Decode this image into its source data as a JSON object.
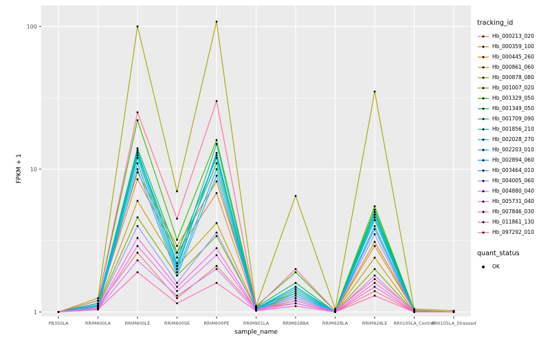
{
  "chart_data": {
    "type": "line",
    "title": "",
    "xlabel": "sample_name",
    "ylabel": "FPKM + 1",
    "y_scale": "log10",
    "y_ticks": [
      1,
      10,
      100
    ],
    "y_minor_ticks": [
      3.1623,
      31.623
    ],
    "ylim": [
      0.93,
      140
    ],
    "grid": true,
    "panel_background": "#EBEBEB",
    "gridline_color": "#FFFFFF",
    "point_color": "#000000",
    "legend_title": "tracking_id",
    "quant_legend_title": "quant_status",
    "quant_legend_entries": [
      "OK"
    ],
    "categories": [
      "PB350LA",
      "RRIM600LA",
      "RRIM600LE",
      "RRIM600SE",
      "RRIM600PE",
      "RRIM901LA",
      "RRIM928BA",
      "RRIM928LA",
      "RRIM928LE",
      "RRII105LA_Control",
      "RRII105LA_Stressed"
    ],
    "series": [
      {
        "name": "Hb_000213_020",
        "color": "#F8766D",
        "values": [
          1.0,
          1.1,
          2.6,
          1.25,
          2.1,
          1.05,
          1.15,
          1.0,
          1.4,
          1.0,
          1.0
        ]
      },
      {
        "name": "Hb_000359_100",
        "color": "#EA8331",
        "values": [
          1.0,
          1.15,
          8.5,
          2.6,
          6.8,
          1.05,
          1.3,
          1.0,
          2.9,
          1.02,
          1.0
        ]
      },
      {
        "name": "Hb_000445_260",
        "color": "#D89000",
        "values": [
          1.0,
          1.2,
          9.5,
          2.9,
          8.2,
          1.08,
          1.35,
          1.0,
          3.1,
          1.02,
          1.0
        ]
      },
      {
        "name": "Hb_000861_060",
        "color": "#C09B00",
        "values": [
          1.0,
          1.1,
          6.0,
          2.1,
          4.2,
          1.05,
          1.2,
          1.0,
          2.4,
          1.0,
          1.0
        ]
      },
      {
        "name": "Hb_000878_080",
        "color": "#A3A500",
        "values": [
          1.0,
          1.25,
          100,
          7.0,
          108,
          1.1,
          6.5,
          1.05,
          35,
          1.05,
          1.02
        ]
      },
      {
        "name": "Hb_001007_020",
        "color": "#7CAE00",
        "values": [
          1.0,
          1.1,
          4.6,
          1.8,
          3.4,
          1.05,
          1.25,
          1.0,
          2.0,
          1.0,
          1.0
        ]
      },
      {
        "name": "Hb_001329_050",
        "color": "#39B600",
        "values": [
          1.0,
          1.2,
          22,
          3.2,
          16,
          1.1,
          1.9,
          1.02,
          5.5,
          1.03,
          1.0
        ]
      },
      {
        "name": "Hb_001349_050",
        "color": "#00BB4E",
        "values": [
          1.0,
          1.15,
          14,
          2.6,
          12,
          1.08,
          1.6,
          1.0,
          5.2,
          1.02,
          1.0
        ]
      },
      {
        "name": "Hb_001709_090",
        "color": "#00BF7D",
        "values": [
          1.0,
          1.15,
          13,
          2.4,
          11,
          1.06,
          1.5,
          1.0,
          5.0,
          1.0,
          1.0
        ]
      },
      {
        "name": "Hb_001856_210",
        "color": "#00C1A3",
        "values": [
          1.0,
          1.12,
          12.5,
          2.2,
          15,
          1.05,
          1.45,
          1.0,
          4.6,
          1.0,
          1.0
        ]
      },
      {
        "name": "Hb_002028_270",
        "color": "#00BFC4",
        "values": [
          1.0,
          1.1,
          12,
          2.0,
          13,
          1.05,
          1.4,
          1.0,
          4.4,
          1.0,
          1.0
        ]
      },
      {
        "name": "Hb_002203_010",
        "color": "#00BAE0",
        "values": [
          1.0,
          1.1,
          11,
          1.9,
          10,
          1.04,
          1.35,
          1.0,
          4.0,
          1.0,
          1.0
        ]
      },
      {
        "name": "Hb_002894_060",
        "color": "#00B0F6",
        "values": [
          1.0,
          1.12,
          13.5,
          2.1,
          12.5,
          1.05,
          1.5,
          1.0,
          4.8,
          1.0,
          1.0
        ]
      },
      {
        "name": "Hb_003464_010",
        "color": "#35A2FF",
        "values": [
          1.0,
          1.08,
          10,
          1.8,
          9.0,
          1.04,
          1.3,
          1.0,
          3.8,
          1.0,
          1.0
        ]
      },
      {
        "name": "Hb_004005_060",
        "color": "#9590FF",
        "values": [
          1.0,
          1.08,
          4.0,
          1.6,
          3.6,
          1.04,
          1.25,
          1.0,
          3.5,
          1.0,
          1.0
        ]
      },
      {
        "name": "Hb_004880_040",
        "color": "#C77CFF",
        "values": [
          1.0,
          1.05,
          2.3,
          1.3,
          2.0,
          1.02,
          1.15,
          1.0,
          1.8,
          1.0,
          1.0
        ]
      },
      {
        "name": "Hb_005731_040",
        "color": "#E76BF3",
        "values": [
          1.0,
          1.05,
          2.9,
          1.4,
          2.5,
          1.03,
          1.2,
          1.0,
          1.6,
          1.0,
          1.0
        ]
      },
      {
        "name": "Hb_007846_030",
        "color": "#FA62DB",
        "values": [
          1.0,
          1.06,
          3.3,
          1.5,
          2.8,
          1.03,
          1.2,
          1.0,
          1.5,
          1.0,
          1.0
        ]
      },
      {
        "name": "Hb_011861_130",
        "color": "#FF62BC",
        "values": [
          1.0,
          1.04,
          1.9,
          1.15,
          1.6,
          1.02,
          1.1,
          1.0,
          1.3,
          1.0,
          1.0
        ]
      },
      {
        "name": "Hb_097292_010",
        "color": "#FF6A98",
        "values": [
          1.0,
          1.2,
          25,
          4.5,
          30,
          1.08,
          2.0,
          1.02,
          1.7,
          1.02,
          1.0
        ]
      }
    ]
  }
}
